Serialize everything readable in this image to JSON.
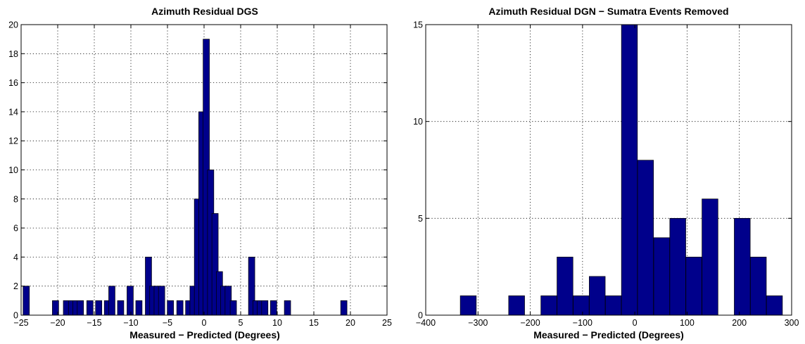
{
  "colors": {
    "bar_fill": "#00008b",
    "bar_edge": "#000000",
    "grid": "#000000"
  },
  "chart_data": [
    {
      "type": "bar",
      "title": "Azimuth Residual DGS",
      "xlabel": "Measured − Predicted (Degrees)",
      "ylabel": "",
      "xlim": [
        -25,
        25
      ],
      "ylim": [
        0,
        20
      ],
      "grid": true,
      "bin_width": 0.86,
      "xticks": [
        -25,
        -20,
        -15,
        -10,
        -5,
        0,
        5,
        10,
        15,
        20,
        25
      ],
      "yticks": [
        0,
        2,
        4,
        6,
        8,
        10,
        12,
        14,
        16,
        18,
        20
      ],
      "x_tick_labels": [
        "−25",
        "−20",
        "−15",
        "−10",
        "−5",
        "0",
        "5",
        "10",
        "15",
        "20",
        "25"
      ],
      "y_tick_labels": [
        "0",
        "2",
        "4",
        "6",
        "8",
        "10",
        "12",
        "14",
        "16",
        "18",
        "20"
      ],
      "bins": [
        {
          "x": -24.3,
          "y": 2
        },
        {
          "x": -20.3,
          "y": 1
        },
        {
          "x": -18.8,
          "y": 1
        },
        {
          "x": -18.1,
          "y": 1
        },
        {
          "x": -17.5,
          "y": 1
        },
        {
          "x": -16.9,
          "y": 1
        },
        {
          "x": -15.6,
          "y": 1
        },
        {
          "x": -14.4,
          "y": 1
        },
        {
          "x": -13.2,
          "y": 1
        },
        {
          "x": -12.6,
          "y": 2
        },
        {
          "x": -11.4,
          "y": 1
        },
        {
          "x": -10.1,
          "y": 2
        },
        {
          "x": -8.9,
          "y": 1
        },
        {
          "x": -7.6,
          "y": 4
        },
        {
          "x": -7.0,
          "y": 2
        },
        {
          "x": -6.4,
          "y": 2
        },
        {
          "x": -5.8,
          "y": 2
        },
        {
          "x": -4.6,
          "y": 1
        },
        {
          "x": -3.3,
          "y": 1
        },
        {
          "x": -2.1,
          "y": 1
        },
        {
          "x": -1.5,
          "y": 2
        },
        {
          "x": -0.9,
          "y": 8
        },
        {
          "x": -0.3,
          "y": 14
        },
        {
          "x": 0.3,
          "y": 19
        },
        {
          "x": 0.9,
          "y": 10
        },
        {
          "x": 1.5,
          "y": 7
        },
        {
          "x": 2.1,
          "y": 3
        },
        {
          "x": 2.7,
          "y": 2
        },
        {
          "x": 3.3,
          "y": 2
        },
        {
          "x": 4.0,
          "y": 1
        },
        {
          "x": 6.5,
          "y": 4
        },
        {
          "x": 7.1,
          "y": 1
        },
        {
          "x": 7.7,
          "y": 1
        },
        {
          "x": 8.3,
          "y": 1
        },
        {
          "x": 9.5,
          "y": 1
        },
        {
          "x": 11.4,
          "y": 1
        },
        {
          "x": 19.1,
          "y": 1
        }
      ]
    },
    {
      "type": "bar",
      "title": "Azimuth Residual DGN − Sumatra Events Removed",
      "xlabel": "Measured − Predicted (Degrees)",
      "ylabel": "",
      "xlim": [
        -400,
        300
      ],
      "ylim": [
        0,
        15
      ],
      "grid": true,
      "bin_width": 30.5,
      "xticks": [
        -400,
        -300,
        -200,
        -100,
        0,
        100,
        200,
        300
      ],
      "yticks": [
        0,
        5,
        10,
        15
      ],
      "x_tick_labels": [
        "−400",
        "−300",
        "−200",
        "−100",
        "0",
        "100",
        "200",
        "300"
      ],
      "y_tick_labels": [
        "0",
        "5",
        "10",
        "15"
      ],
      "bins": [
        {
          "x": -318.6,
          "y": 1
        },
        {
          "x": -226.1,
          "y": 1
        },
        {
          "x": -164.4,
          "y": 1
        },
        {
          "x": -133.6,
          "y": 3
        },
        {
          "x": -102.7,
          "y": 1
        },
        {
          "x": -71.9,
          "y": 2
        },
        {
          "x": -41.1,
          "y": 1
        },
        {
          "x": -10.3,
          "y": 15
        },
        {
          "x": 20.5,
          "y": 8
        },
        {
          "x": 51.4,
          "y": 4
        },
        {
          "x": 82.2,
          "y": 5
        },
        {
          "x": 113.0,
          "y": 3
        },
        {
          "x": 143.8,
          "y": 6
        },
        {
          "x": 205.5,
          "y": 5
        },
        {
          "x": 236.3,
          "y": 3
        },
        {
          "x": 267.1,
          "y": 1
        }
      ]
    }
  ]
}
